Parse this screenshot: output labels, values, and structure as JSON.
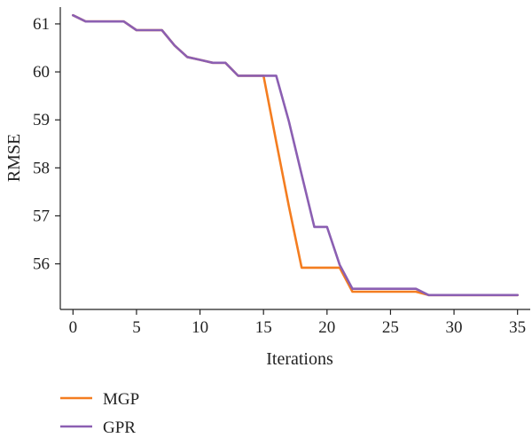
{
  "chart_data": {
    "type": "line",
    "title": "",
    "xlabel": "Iterations",
    "ylabel": "RMSE",
    "xlim": [
      -1,
      36
    ],
    "ylim": [
      55.05,
      61.35
    ],
    "xticks": [
      0,
      5,
      10,
      15,
      20,
      25,
      30,
      35
    ],
    "yticks": [
      56,
      57,
      58,
      59,
      60,
      61
    ],
    "grid": false,
    "legend_position": "bottom-left",
    "series": [
      {
        "name": "MGP",
        "color": "#f47d20",
        "x": [
          0,
          1,
          2,
          3,
          4,
          5,
          6,
          7,
          8,
          9,
          10,
          11,
          12,
          13,
          14,
          15,
          16,
          17,
          18,
          19,
          20,
          21,
          22,
          23,
          24,
          25,
          26,
          27,
          28,
          29,
          30,
          31,
          32,
          33,
          34,
          35
        ],
        "y": [
          61.18,
          61.05,
          61.05,
          61.05,
          61.05,
          60.87,
          60.87,
          60.87,
          60.55,
          60.31,
          60.25,
          60.19,
          60.19,
          59.92,
          59.92,
          59.92,
          58.55,
          57.2,
          55.92,
          55.92,
          55.92,
          55.92,
          55.42,
          55.42,
          55.42,
          55.42,
          55.42,
          55.42,
          55.35,
          55.35,
          55.35,
          55.35,
          55.35,
          55.35,
          55.35,
          55.35
        ]
      },
      {
        "name": "GPR",
        "color": "#8b5fb2",
        "x": [
          0,
          1,
          2,
          3,
          4,
          5,
          6,
          7,
          8,
          9,
          10,
          11,
          12,
          13,
          14,
          15,
          16,
          17,
          18,
          19,
          20,
          21,
          22,
          23,
          24,
          25,
          26,
          27,
          28,
          29,
          30,
          31,
          32,
          33,
          34,
          35
        ],
        "y": [
          61.18,
          61.05,
          61.05,
          61.05,
          61.05,
          60.87,
          60.87,
          60.87,
          60.55,
          60.31,
          60.25,
          60.19,
          60.19,
          59.92,
          59.92,
          59.92,
          59.92,
          58.97,
          57.86,
          56.77,
          56.77,
          55.98,
          55.48,
          55.48,
          55.48,
          55.48,
          55.48,
          55.48,
          55.35,
          55.35,
          55.35,
          55.35,
          55.35,
          55.35,
          55.35,
          55.35
        ]
      }
    ]
  }
}
